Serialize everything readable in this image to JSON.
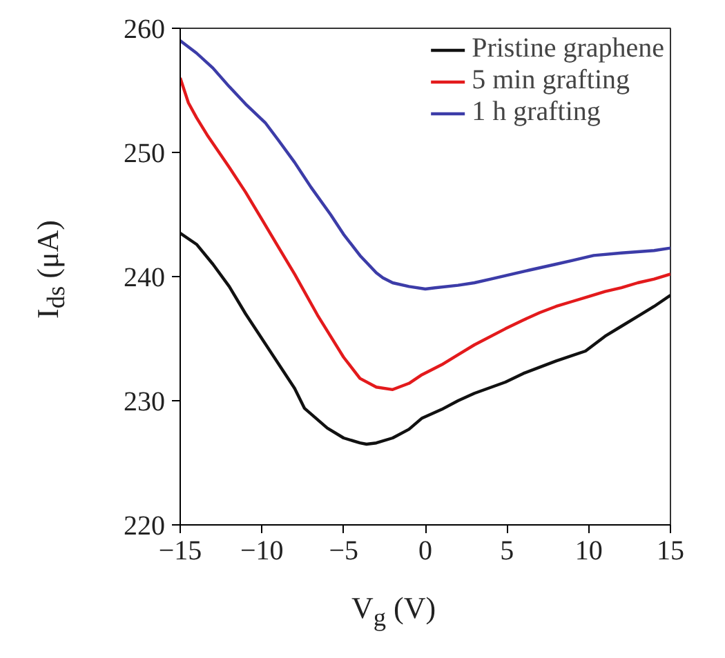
{
  "chart_data": {
    "type": "line",
    "xlabel": "V$_{g}$ (V)",
    "ylabel": "I$_{ds}$ (μA)",
    "xlim": [
      -15,
      15
    ],
    "ylim": [
      220,
      260
    ],
    "xticks": [
      {
        "value": -15,
        "label": "−15"
      },
      {
        "value": -10,
        "label": "−10"
      },
      {
        "value": -5,
        "label": "−5"
      },
      0,
      5,
      10,
      15
    ],
    "yticks": [
      220,
      230,
      240,
      250,
      260
    ],
    "grid": false,
    "legend": "top right",
    "line_style": "solid",
    "marker": "none",
    "series": [
      {
        "name": "Pristine graphene",
        "color": "#111111",
        "x": [
          -15,
          -14,
          -13,
          -12,
          -11,
          -10,
          -9,
          -8,
          -7.4,
          -6,
          -5,
          -4,
          -3.6,
          -3,
          -2,
          -1,
          -0.2,
          1,
          2,
          3,
          4.9,
          6,
          7,
          8,
          9.8,
          11,
          12,
          13,
          14,
          15
        ],
        "values": [
          243.5,
          242.6,
          241.0,
          239.2,
          237.0,
          235.0,
          233.0,
          231.0,
          229.4,
          227.8,
          227.0,
          226.6,
          226.5,
          226.6,
          227.0,
          227.7,
          228.6,
          229.3,
          230.0,
          230.6,
          231.5,
          232.2,
          232.7,
          233.2,
          234.0,
          235.2,
          236.0,
          236.8,
          237.6,
          238.5
        ]
      },
      {
        "name": "5 min grafting",
        "color": "#e31a1c",
        "x": [
          -15,
          -14.5,
          -14,
          -13.3,
          -12,
          -11,
          -10,
          -9,
          -8,
          -6.6,
          -5,
          -4,
          -3,
          -2,
          -1,
          -0.2,
          1,
          2,
          3,
          4.9,
          6,
          7,
          8,
          9,
          10,
          11,
          12,
          13,
          14,
          15
        ],
        "values": [
          256,
          254,
          252.8,
          251.3,
          248.8,
          246.8,
          244.6,
          242.4,
          240.2,
          236.9,
          233.5,
          231.8,
          231.1,
          230.9,
          231.4,
          232.1,
          232.9,
          233.7,
          234.5,
          235.8,
          236.5,
          237.1,
          237.6,
          238.0,
          238.4,
          238.8,
          239.1,
          239.5,
          239.8,
          240.2
        ]
      },
      {
        "name": "1 h grafting",
        "color": "#3c3ca8",
        "x": [
          -15,
          -14,
          -13,
          -12,
          -11,
          -9.8,
          -9,
          -8,
          -7,
          -5.8,
          -5,
          -4,
          -3,
          -2.6,
          -2,
          -1,
          0,
          0.6,
          2,
          3,
          4,
          5,
          6.3,
          8,
          9,
          10.3,
          12,
          13,
          14,
          15
        ],
        "values": [
          259,
          258.0,
          256.8,
          255.3,
          253.9,
          252.4,
          251.0,
          249.2,
          247.2,
          245.0,
          243.4,
          241.7,
          240.3,
          239.9,
          239.5,
          239.2,
          239.0,
          239.1,
          239.3,
          239.5,
          239.8,
          240.1,
          240.5,
          241.0,
          241.3,
          241.7,
          241.9,
          242.0,
          242.1,
          242.3
        ]
      }
    ]
  }
}
